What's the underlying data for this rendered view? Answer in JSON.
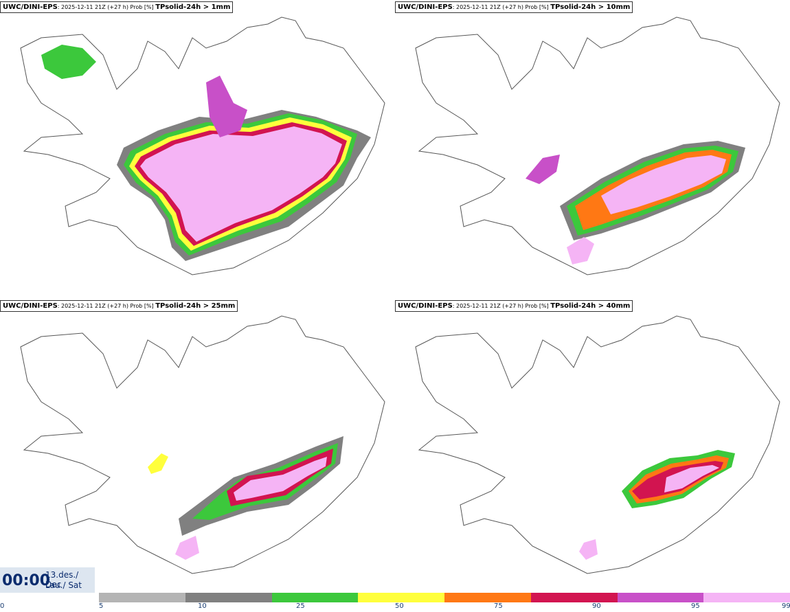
{
  "panels": [
    {
      "model": "UWC/DINI-EPS",
      "meta": ": 2025-12-11 21Z (+27 h) Prob [%] ",
      "param": "TPsolid-24h > 1mm"
    },
    {
      "model": "UWC/DINI-EPS",
      "meta": ": 2025-12-11 21Z (+27 h) Prob [%] ",
      "param": "TPsolid-24h > 10mm"
    },
    {
      "model": "UWC/DINI-EPS",
      "meta": ": 2025-12-11 21Z (+27 h) Prob [%] ",
      "param": "TPsolid-24h > 25mm"
    },
    {
      "model": "UWC/DINI-EPS",
      "meta": ": 2025-12-11 21Z (+27 h) Prob [%] ",
      "param": "TPsolid-24h > 40mm"
    }
  ],
  "clock": {
    "time": "00:00",
    "date_line1": "13.des./ Dec",
    "date_line2": "Lau./ Sat"
  },
  "colorbar": {
    "ticks": [
      "0",
      "5",
      "10",
      "25",
      "50",
      "75",
      "90",
      "95",
      "99"
    ],
    "colors": [
      "#b4b4b4",
      "#808080",
      "#3cc83c",
      "#ffff3c",
      "#ff7814",
      "#d21450",
      "#c850c8",
      "#f5b4f5"
    ]
  }
}
